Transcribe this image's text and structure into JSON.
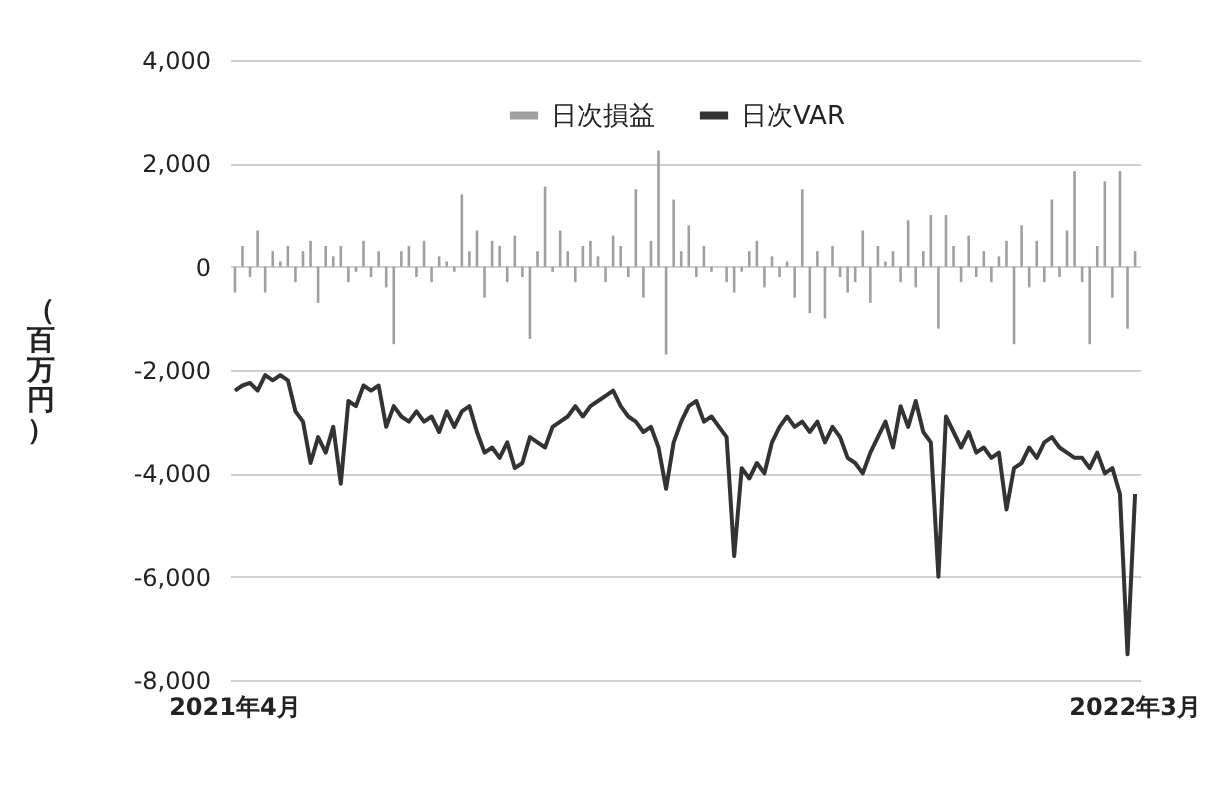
{
  "chart_data": {
    "type": "bar",
    "ylabel": "（百万円）",
    "categories": [
      "2021年4月",
      null,
      null,
      null,
      null,
      null,
      null,
      null,
      null,
      null,
      null,
      null,
      null,
      null,
      null,
      null,
      null,
      null,
      null,
      null,
      null,
      null,
      null,
      null,
      null,
      null,
      null,
      null,
      null,
      null,
      null,
      null,
      null,
      null,
      null,
      null,
      null,
      null,
      null,
      null,
      null,
      null,
      null,
      null,
      null,
      null,
      null,
      null,
      null,
      null,
      null,
      null,
      null,
      null,
      null,
      null,
      null,
      null,
      null,
      null,
      null,
      null,
      null,
      null,
      null,
      null,
      null,
      null,
      null,
      null,
      null,
      null,
      null,
      null,
      null,
      null,
      null,
      null,
      null,
      null,
      null,
      null,
      null,
      null,
      null,
      null,
      null,
      null,
      null,
      null,
      null,
      null,
      null,
      null,
      null,
      null,
      null,
      null,
      null,
      null,
      null,
      null,
      null,
      null,
      null,
      null,
      null,
      null,
      null,
      null,
      null,
      null,
      null,
      null,
      null,
      null,
      null,
      null,
      null,
      "2022年3月"
    ],
    "series": [
      {
        "name": "日次損益",
        "color": "#a0a0a0",
        "values": [
          -500,
          400,
          -200,
          700,
          -500,
          300,
          100,
          400,
          -300,
          300,
          500,
          -700,
          400,
          200,
          400,
          -300,
          -100,
          500,
          -200,
          300,
          -400,
          -1500,
          300,
          400,
          -200,
          500,
          -300,
          200,
          100,
          -100,
          1400,
          300,
          700,
          -600,
          500,
          400,
          -300,
          600,
          -200,
          -1400,
          300,
          1550,
          -100,
          700,
          300,
          -300,
          400,
          500,
          200,
          -300,
          600,
          400,
          -200,
          1500,
          -600,
          500,
          2250,
          -1700,
          1300,
          300,
          800,
          -200,
          400,
          -100,
          0,
          -300,
          -500,
          -100,
          300,
          500,
          -400,
          200,
          -200,
          100,
          -600,
          1500,
          -900,
          300,
          -1000,
          400,
          -200,
          -500,
          -300,
          700,
          -700,
          400,
          100,
          300,
          -300,
          900,
          -400,
          300,
          1000,
          -1200,
          1000,
          400,
          -300,
          600,
          -200,
          300,
          -300,
          200,
          500,
          -1500,
          800,
          -400,
          500,
          -300,
          1300,
          -200,
          700,
          1850,
          -300,
          -1500,
          400,
          1650,
          -600,
          1850,
          -1200,
          300
        ]
      },
      {
        "name": "日次VAR",
        "type": "line",
        "color": "#333333",
        "values": [
          -2400,
          -2300,
          -2250,
          -2400,
          -2100,
          -2200,
          -2100,
          -2200,
          -2800,
          -3000,
          -3800,
          -3300,
          -3600,
          -3100,
          -4200,
          -2600,
          -2700,
          -2300,
          -2400,
          -2300,
          -3100,
          -2700,
          -2900,
          -3000,
          -2800,
          -3000,
          -2900,
          -3200,
          -2800,
          -3100,
          -2800,
          -2700,
          -3200,
          -3600,
          -3500,
          -3700,
          -3400,
          -3900,
          -3800,
          -3300,
          -3400,
          -3500,
          -3100,
          -3000,
          -2900,
          -2700,
          -2900,
          -2700,
          -2600,
          -2500,
          -2400,
          -2700,
          -2900,
          -3000,
          -3200,
          -3100,
          -3500,
          -4300,
          -3400,
          -3000,
          -2700,
          -2600,
          -3000,
          -2900,
          -3100,
          -3300,
          -5600,
          -3900,
          -4100,
          -3800,
          -4000,
          -3400,
          -3100,
          -2900,
          -3100,
          -3000,
          -3200,
          -3000,
          -3400,
          -3100,
          -3300,
          -3700,
          -3800,
          -4000,
          -3600,
          -3300,
          -3000,
          -3500,
          -2700,
          -3100,
          -2600,
          -3200,
          -3400,
          -6000,
          -2900,
          -3200,
          -3500,
          -3200,
          -3600,
          -3500,
          -3700,
          -3600,
          -4700,
          -3900,
          -3800,
          -3500,
          -3700,
          -3400,
          -3300,
          -3500,
          -3600,
          -3700,
          -3700,
          -3900,
          -3600,
          -4000,
          -3900,
          -4400,
          -7500,
          -4400
        ]
      }
    ],
    "ylim": [
      -8000,
      4000
    ],
    "yticks": [
      {
        "value": -8000,
        "label": "-8,000"
      },
      {
        "value": -6000,
        "label": "-6,000"
      },
      {
        "value": -4000,
        "label": "-4,000"
      },
      {
        "value": -2000,
        "label": "-2,000"
      },
      {
        "value": 0,
        "label": "0"
      },
      {
        "value": 2000,
        "label": "2,000"
      },
      {
        "value": 4000,
        "label": "4,000"
      }
    ],
    "grid": "y",
    "legend": "top"
  }
}
